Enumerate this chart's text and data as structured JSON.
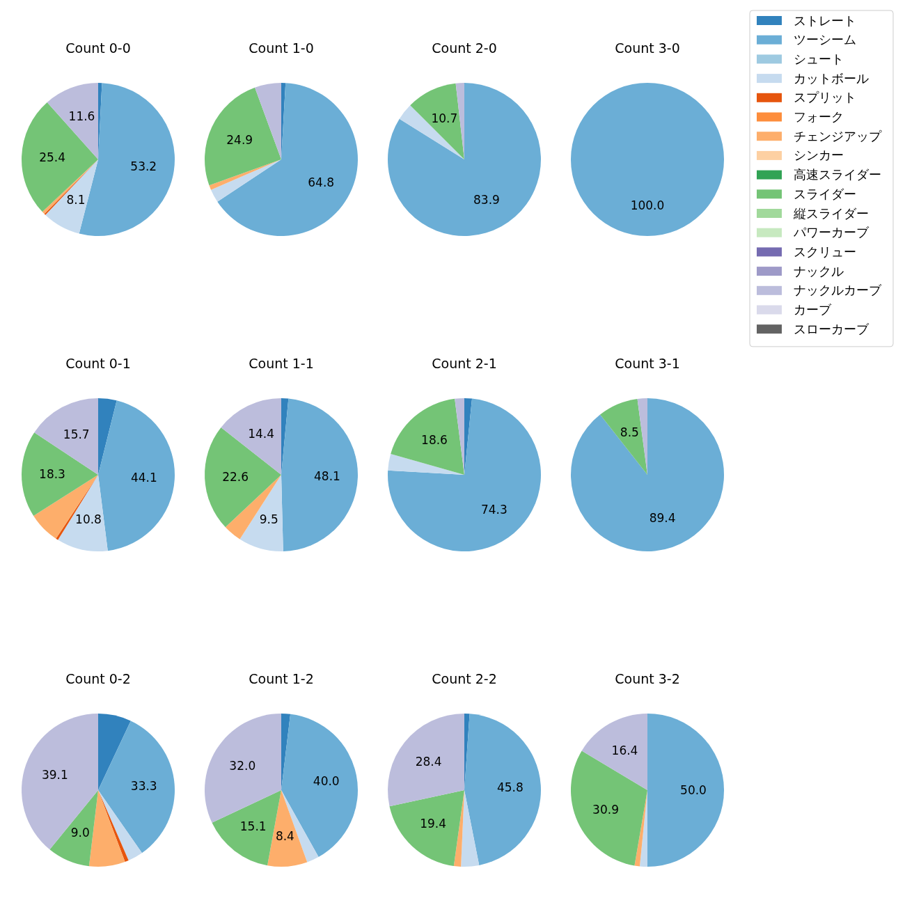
{
  "chart_data": [
    {
      "type": "pie",
      "title": "Count 0-0",
      "legend": "right",
      "categories": [
        "ストレート",
        "ツーシーム",
        "シュート",
        "カットボール",
        "スプリット",
        "フォーク",
        "チェンジアップ",
        "シンカー",
        "高速スライダー",
        "スライダー",
        "縦スライダー",
        "パワーカーブ",
        "スクリュー",
        "ナックル",
        "ナックルカーブ",
        "カーブ",
        "スローカーブ"
      ],
      "colors": [
        "#3182bd",
        "#6baed6",
        "#9ecae1",
        "#c6dbef",
        "#e6550d",
        "#fd8d3c",
        "#fdae6b",
        "#fdd0a2",
        "#31a354",
        "#74c476",
        "#a1d99b",
        "#c7e9c0",
        "#756bb1",
        "#9e9ac8",
        "#bcbddc",
        "#dadaeb",
        "#636363"
      ],
      "values": [
        0.8,
        53.2,
        0,
        8.1,
        0.3,
        0,
        0.6,
        0,
        0,
        25.4,
        0,
        0,
        0,
        0,
        11.6,
        0,
        0
      ],
      "value_labels": [
        null,
        "53.2",
        null,
        "8.1",
        null,
        null,
        null,
        null,
        null,
        "25.4",
        null,
        null,
        null,
        null,
        "11.6",
        null,
        null
      ]
    },
    {
      "type": "pie",
      "title": "Count 1-0",
      "categories": [
        null,
        null,
        null,
        null,
        null,
        null
      ],
      "colors": [
        "#3182bd",
        "#6baed6",
        "#c6dbef",
        "#fdae6b",
        "#74c476",
        "#bcbddc"
      ],
      "values": [
        0.9,
        64.8,
        2.8,
        1.0,
        24.9,
        5.6
      ],
      "value_labels": [
        null,
        "64.8",
        null,
        null,
        "24.9",
        null
      ]
    },
    {
      "type": "pie",
      "title": "Count 2-0",
      "categories": [
        null,
        null,
        null,
        null
      ],
      "colors": [
        "#6baed6",
        "#c6dbef",
        "#74c476",
        "#bcbddc"
      ],
      "values": [
        83.9,
        3.6,
        10.7,
        1.8
      ],
      "value_labels": [
        "83.9",
        null,
        "10.7",
        null
      ]
    },
    {
      "type": "pie",
      "title": "Count 3-0",
      "categories": [
        null
      ],
      "colors": [
        "#6baed6"
      ],
      "values": [
        100
      ],
      "value_labels": [
        "100.0"
      ]
    },
    {
      "type": "pie",
      "title": "Count 0-1",
      "categories": [
        null,
        null,
        null,
        null,
        null,
        null,
        null
      ],
      "colors": [
        "#3182bd",
        "#6baed6",
        "#c6dbef",
        "#e6550d",
        "#fdae6b",
        "#74c476",
        "#bcbddc"
      ],
      "values": [
        3.9,
        44.1,
        10.8,
        0.5,
        6.7,
        18.3,
        15.7
      ],
      "value_labels": [
        null,
        "44.1",
        "10.8",
        null,
        null,
        "18.3",
        "15.7"
      ]
    },
    {
      "type": "pie",
      "title": "Count 1-1",
      "categories": [
        null,
        null,
        null,
        null,
        null,
        null
      ],
      "colors": [
        "#3182bd",
        "#6baed6",
        "#c6dbef",
        "#fdae6b",
        "#74c476",
        "#bcbddc"
      ],
      "values": [
        1.5,
        48.1,
        9.5,
        3.9,
        22.6,
        14.4
      ],
      "value_labels": [
        null,
        "48.1",
        "9.5",
        null,
        "22.6",
        "14.4"
      ]
    },
    {
      "type": "pie",
      "title": "Count 2-1",
      "categories": [
        null,
        null,
        null,
        null,
        null
      ],
      "colors": [
        "#3182bd",
        "#6baed6",
        "#c6dbef",
        "#74c476",
        "#bcbddc"
      ],
      "values": [
        1.6,
        74.3,
        3.5,
        18.6,
        2.0
      ],
      "value_labels": [
        null,
        "74.3",
        null,
        "18.6",
        null
      ]
    },
    {
      "type": "pie",
      "title": "Count 3-1",
      "categories": [
        null,
        null,
        null
      ],
      "colors": [
        "#6baed6",
        "#74c476",
        "#bcbddc"
      ],
      "values": [
        89.4,
        8.5,
        2.1
      ],
      "value_labels": [
        "89.4",
        "8.5",
        null
      ]
    },
    {
      "type": "pie",
      "title": "Count 0-2",
      "categories": [
        null,
        null,
        null,
        null,
        null,
        null,
        null
      ],
      "colors": [
        "#3182bd",
        "#6baed6",
        "#c6dbef",
        "#e6550d",
        "#fdae6b",
        "#74c476",
        "#bcbddc"
      ],
      "values": [
        7.0,
        33.3,
        3.2,
        0.8,
        7.6,
        9.0,
        39.1
      ],
      "value_labels": [
        null,
        "33.3",
        null,
        null,
        null,
        "9.0",
        "39.1"
      ]
    },
    {
      "type": "pie",
      "title": "Count 1-2",
      "categories": [
        null,
        null,
        null,
        null,
        null,
        null
      ],
      "colors": [
        "#3182bd",
        "#6baed6",
        "#c6dbef",
        "#fdae6b",
        "#74c476",
        "#bcbddc"
      ],
      "values": [
        1.9,
        40.0,
        2.6,
        8.4,
        15.1,
        32.0
      ],
      "value_labels": [
        null,
        "40.0",
        null,
        "8.4",
        "15.1",
        "32.0"
      ]
    },
    {
      "type": "pie",
      "title": "Count 2-2",
      "categories": [
        null,
        null,
        null,
        null,
        null,
        null
      ],
      "colors": [
        "#3182bd",
        "#6baed6",
        "#c6dbef",
        "#fdae6b",
        "#74c476",
        "#bcbddc"
      ],
      "values": [
        1.1,
        45.8,
        3.8,
        1.5,
        19.4,
        28.4
      ],
      "value_labels": [
        null,
        "45.8",
        null,
        null,
        "19.4",
        "28.4"
      ]
    },
    {
      "type": "pie",
      "title": "Count 3-2",
      "categories": [
        null,
        null,
        null,
        null,
        null
      ],
      "colors": [
        "#6baed6",
        "#c6dbef",
        "#fdae6b",
        "#74c476",
        "#bcbddc"
      ],
      "values": [
        50.0,
        1.6,
        1.1,
        30.9,
        16.4
      ],
      "value_labels": [
        "50.0",
        null,
        null,
        "30.9",
        "16.4"
      ]
    }
  ]
}
